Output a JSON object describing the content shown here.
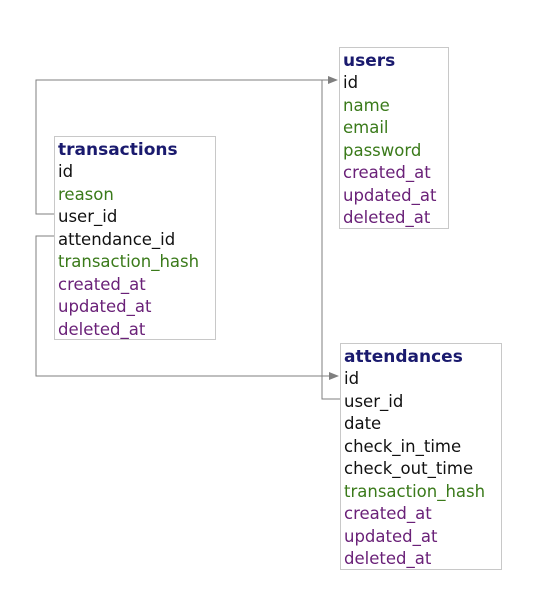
{
  "entities": {
    "users": {
      "title": "users",
      "fields": [
        {
          "name": "id",
          "kind": "key"
        },
        {
          "name": "name",
          "kind": "attr"
        },
        {
          "name": "email",
          "kind": "attr"
        },
        {
          "name": "password",
          "kind": "attr"
        },
        {
          "name": "created_at",
          "kind": "ts"
        },
        {
          "name": "updated_at",
          "kind": "ts"
        },
        {
          "name": "deleted_at",
          "kind": "ts"
        }
      ]
    },
    "transactions": {
      "title": "transactions",
      "fields": [
        {
          "name": "id",
          "kind": "key"
        },
        {
          "name": "reason",
          "kind": "attr"
        },
        {
          "name": "user_id",
          "kind": "key"
        },
        {
          "name": "attendance_id",
          "kind": "key"
        },
        {
          "name": "transaction_hash",
          "kind": "attr"
        },
        {
          "name": "created_at",
          "kind": "ts"
        },
        {
          "name": "updated_at",
          "kind": "ts"
        },
        {
          "name": "deleted_at",
          "kind": "ts"
        }
      ]
    },
    "attendances": {
      "title": "attendances",
      "fields": [
        {
          "name": "id",
          "kind": "key"
        },
        {
          "name": "user_id",
          "kind": "key"
        },
        {
          "name": "date",
          "kind": "key"
        },
        {
          "name": "check_in_time",
          "kind": "key"
        },
        {
          "name": "check_out_time",
          "kind": "key"
        },
        {
          "name": "transaction_hash",
          "kind": "attr"
        },
        {
          "name": "created_at",
          "kind": "ts"
        },
        {
          "name": "updated_at",
          "kind": "ts"
        },
        {
          "name": "deleted_at",
          "kind": "ts"
        }
      ]
    }
  },
  "relations": [
    {
      "from": "transactions.user_id",
      "to": "users.id"
    },
    {
      "from": "transactions.attendance_id",
      "to": "attendances.id"
    },
    {
      "from": "attendances.user_id",
      "to": "users.id"
    }
  ],
  "colors": {
    "title": "#1a1a6e",
    "key_field": "#111111",
    "attr_field": "#3a7a1a",
    "timestamp_field": "#6a2178",
    "connector": "#7f7f7f",
    "border": "#c8c8c8"
  }
}
